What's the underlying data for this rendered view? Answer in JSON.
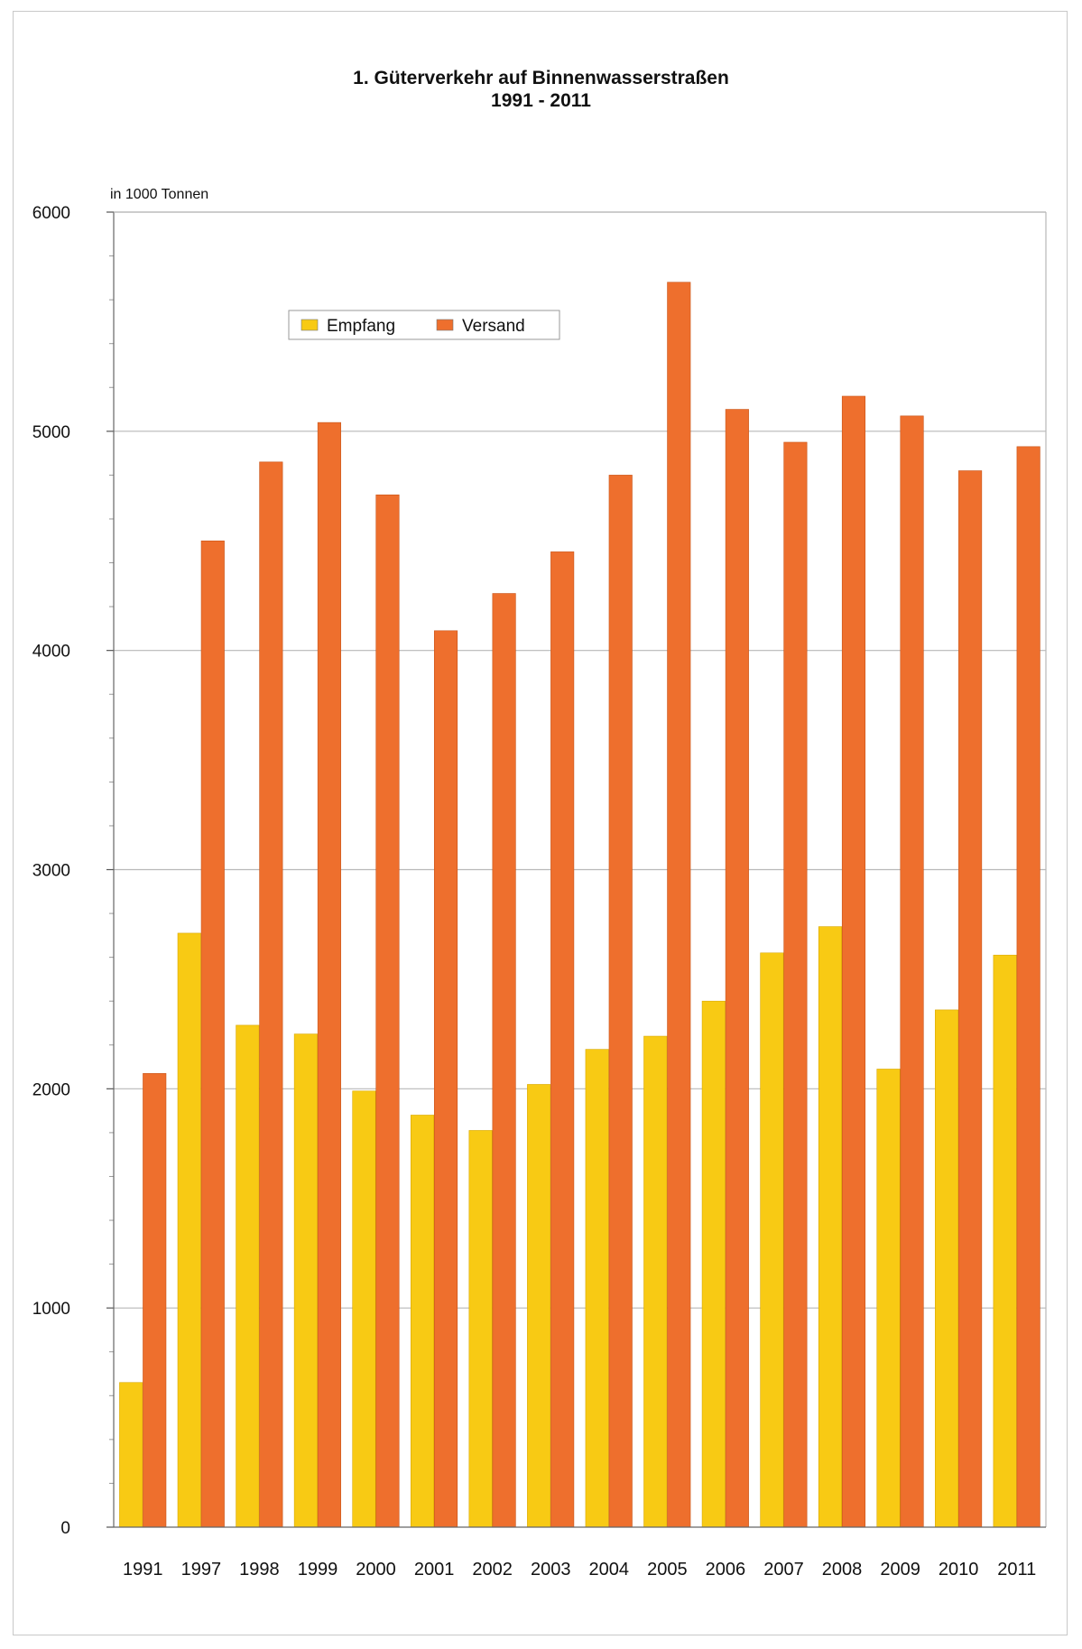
{
  "chart_data": {
    "type": "bar",
    "title": "1. Güterverkehr auf Binnenwasserstraßen",
    "subtitle": "1991 - 2011",
    "ylabel": "in 1000 Tonnen",
    "xlabel": "",
    "ylim": [
      0,
      6000
    ],
    "yticks": [
      "0",
      "1000",
      "2000",
      "3000",
      "4000",
      "5000",
      "6000"
    ],
    "grid": true,
    "legend_position": "top-left",
    "categories": [
      "1991",
      "1997",
      "1998",
      "1999",
      "2000",
      "2001",
      "2002",
      "2003",
      "2004",
      "2005",
      "2006",
      "2007",
      "2008",
      "2009",
      "2010",
      "2011"
    ],
    "series": [
      {
        "name": "Empfang",
        "color": "#F8CA14",
        "values": [
          660,
          2710,
          2290,
          2250,
          1990,
          1880,
          1810,
          2020,
          2180,
          2240,
          2400,
          2620,
          2740,
          2090,
          2360,
          2610
        ]
      },
      {
        "name": "Versand",
        "color": "#EE6F2D",
        "values": [
          2070,
          4500,
          4860,
          5040,
          4710,
          4090,
          4260,
          4450,
          4800,
          5680,
          5100,
          4950,
          5160,
          5070,
          4820,
          4930
        ]
      }
    ]
  }
}
